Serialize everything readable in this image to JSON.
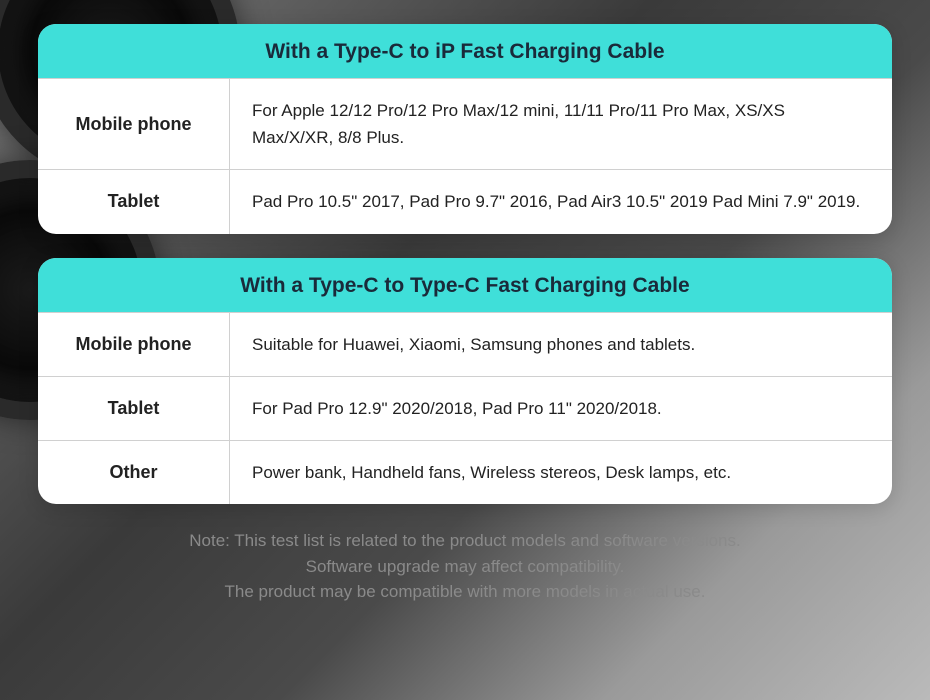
{
  "colors": {
    "header_bg": "#3fdfd9",
    "header_text": "#1a2a3a",
    "card_bg": "#ffffff",
    "border": "#d0d0d0",
    "body_text": "#222222",
    "note_text": "#8a8a8a"
  },
  "typography": {
    "header_fontsize": 21,
    "header_weight": 700,
    "label_fontsize": 18,
    "label_weight": 700,
    "content_fontsize": 17,
    "note_fontsize": 17
  },
  "layout": {
    "card_radius": 18,
    "label_col_width": 192
  },
  "cards": [
    {
      "title": "With a Type-C to iP Fast Charging Cable",
      "rows": [
        {
          "label": "Mobile phone",
          "content": "For Apple 12/12 Pro/12 Pro Max/12 mini, 11/11 Pro/11 Pro Max, XS/XS Max/X/XR, 8/8 Plus."
        },
        {
          "label": "Tablet",
          "content": "Pad Pro 10.5\" 2017, Pad Pro 9.7\" 2016, Pad Air3 10.5\" 2019 Pad Mini 7.9\" 2019."
        }
      ]
    },
    {
      "title": "With a Type-C to Type-C Fast Charging Cable",
      "rows": [
        {
          "label": "Mobile phone",
          "content": "Suitable for Huawei, Xiaomi, Samsung phones and tablets."
        },
        {
          "label": "Tablet",
          "content": "For Pad Pro 12.9\" 2020/2018, Pad Pro 11\" 2020/2018."
        },
        {
          "label": "Other",
          "content": "Power bank, Handheld fans, Wireless stereos, Desk lamps, etc."
        }
      ]
    }
  ],
  "note": {
    "line1": "Note: This test list is related to the product models and software versions.",
    "line2": "Software upgrade may affect compatibility.",
    "line3": "The product may be compatible with more models in actual use."
  }
}
